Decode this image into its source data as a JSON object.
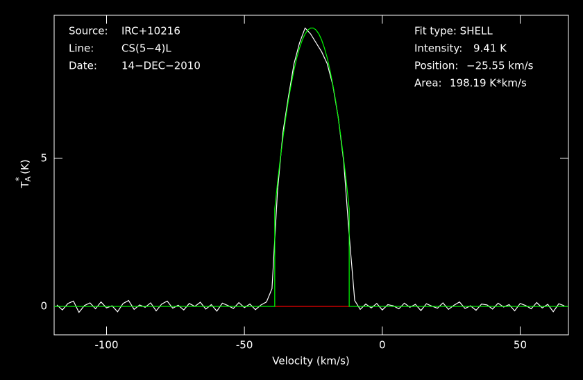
{
  "chart_data": {
    "type": "line",
    "x_label": "Velocity (km/s)",
    "y_label": {
      "main": "T",
      "sub": "A",
      "sup": "*",
      "unit": "(K)"
    },
    "xlim": [
      -119,
      67.5
    ],
    "ylim": [
      -0.96,
      9.83
    ],
    "xticks": [
      -100,
      -50,
      0,
      50
    ],
    "yticks": [
      0,
      5
    ],
    "annotations": {
      "left": [
        [
          "Source:",
          "IRC+10216"
        ],
        [
          "Line:",
          "CS(5−4)L"
        ],
        [
          "Date:",
          "14−DEC−2010"
        ]
      ],
      "fit_type": "Fit type: SHELL",
      "right": [
        [
          "Intensity:",
          "9.41 K"
        ],
        [
          "Position:",
          "−25.55 km/s"
        ],
        [
          "Area:",
          "198.19 K*km/s"
        ]
      ]
    },
    "series": [
      {
        "color": "#ffffff",
        "x": [
          -118,
          -116,
          -114,
          -112,
          -110,
          -108,
          -106,
          -104,
          -102,
          -100,
          -98,
          -96,
          -94,
          -92,
          -90,
          -88,
          -86,
          -84,
          -82,
          -80,
          -78,
          -76,
          -74,
          -72,
          -70,
          -68,
          -66,
          -64,
          -62,
          -60,
          -58,
          -56,
          -54,
          -52,
          -50,
          -48,
          -46,
          -44,
          -42,
          -40,
          -38,
          -36,
          -34,
          -32,
          -30,
          -28,
          -26,
          -24,
          -22,
          -20,
          -18,
          -16,
          -14,
          -12,
          -10,
          -8,
          -6,
          -4,
          -2,
          0,
          2,
          4,
          6,
          8,
          10,
          12,
          14,
          16,
          18,
          20,
          22,
          24,
          26,
          28,
          30,
          32,
          34,
          36,
          38,
          40,
          42,
          44,
          46,
          48,
          50,
          52,
          54,
          56,
          58,
          60,
          62,
          64,
          66
        ],
        "values": [
          0.05,
          -0.12,
          0.1,
          0.18,
          -0.2,
          0.03,
          0.12,
          -0.08,
          0.15,
          -0.05,
          0.02,
          -0.18,
          0.1,
          0.2,
          -0.1,
          0.05,
          -0.03,
          0.12,
          -0.15,
          0.08,
          0.18,
          -0.06,
          0.04,
          -0.12,
          0.1,
          0.0,
          0.14,
          -0.09,
          0.06,
          -0.16,
          0.11,
          0.03,
          -0.07,
          0.13,
          -0.04,
          0.08,
          -0.11,
          0.05,
          0.15,
          0.6,
          3.9,
          5.9,
          7.1,
          8.2,
          8.9,
          9.4,
          9.2,
          8.9,
          8.6,
          8.2,
          7.5,
          6.4,
          4.9,
          2.4,
          0.2,
          -0.1,
          0.08,
          -0.05,
          0.1,
          -0.12,
          0.06,
          0.02,
          -0.08,
          0.11,
          -0.03,
          0.07,
          -0.14,
          0.09,
          0.01,
          -0.06,
          0.12,
          -0.1,
          0.04,
          0.15,
          -0.07,
          0.02,
          -0.13,
          0.08,
          0.05,
          -0.09,
          0.11,
          -0.02,
          0.06,
          -0.15,
          0.1,
          0.03,
          -0.08,
          0.13,
          -0.05,
          0.07,
          -0.18,
          0.09,
          0.02
        ]
      },
      {
        "color": "#00ff00",
        "x": [
          -119,
          -39,
          -39,
          -38,
          -37,
          -36,
          -35,
          -34,
          -33,
          -32,
          -31,
          -30,
          -29,
          -28,
          -27,
          -26,
          -25,
          -24,
          -23,
          -22,
          -21,
          -20,
          -19,
          -18,
          -17,
          -16,
          -15,
          -14,
          -13,
          -12,
          -12,
          67.5
        ],
        "values": [
          0,
          0,
          3.29,
          4.17,
          4.97,
          5.71,
          6.38,
          6.99,
          7.52,
          7.99,
          8.4,
          8.73,
          9.0,
          9.2,
          9.33,
          9.4,
          9.4,
          9.33,
          9.2,
          9.0,
          8.73,
          8.4,
          7.99,
          7.52,
          6.99,
          6.38,
          5.71,
          4.97,
          4.17,
          3.29,
          0,
          0
        ]
      },
      {
        "color": "#ff0000",
        "x": [
          -39,
          -12
        ],
        "values": [
          0,
          0
        ]
      }
    ]
  }
}
